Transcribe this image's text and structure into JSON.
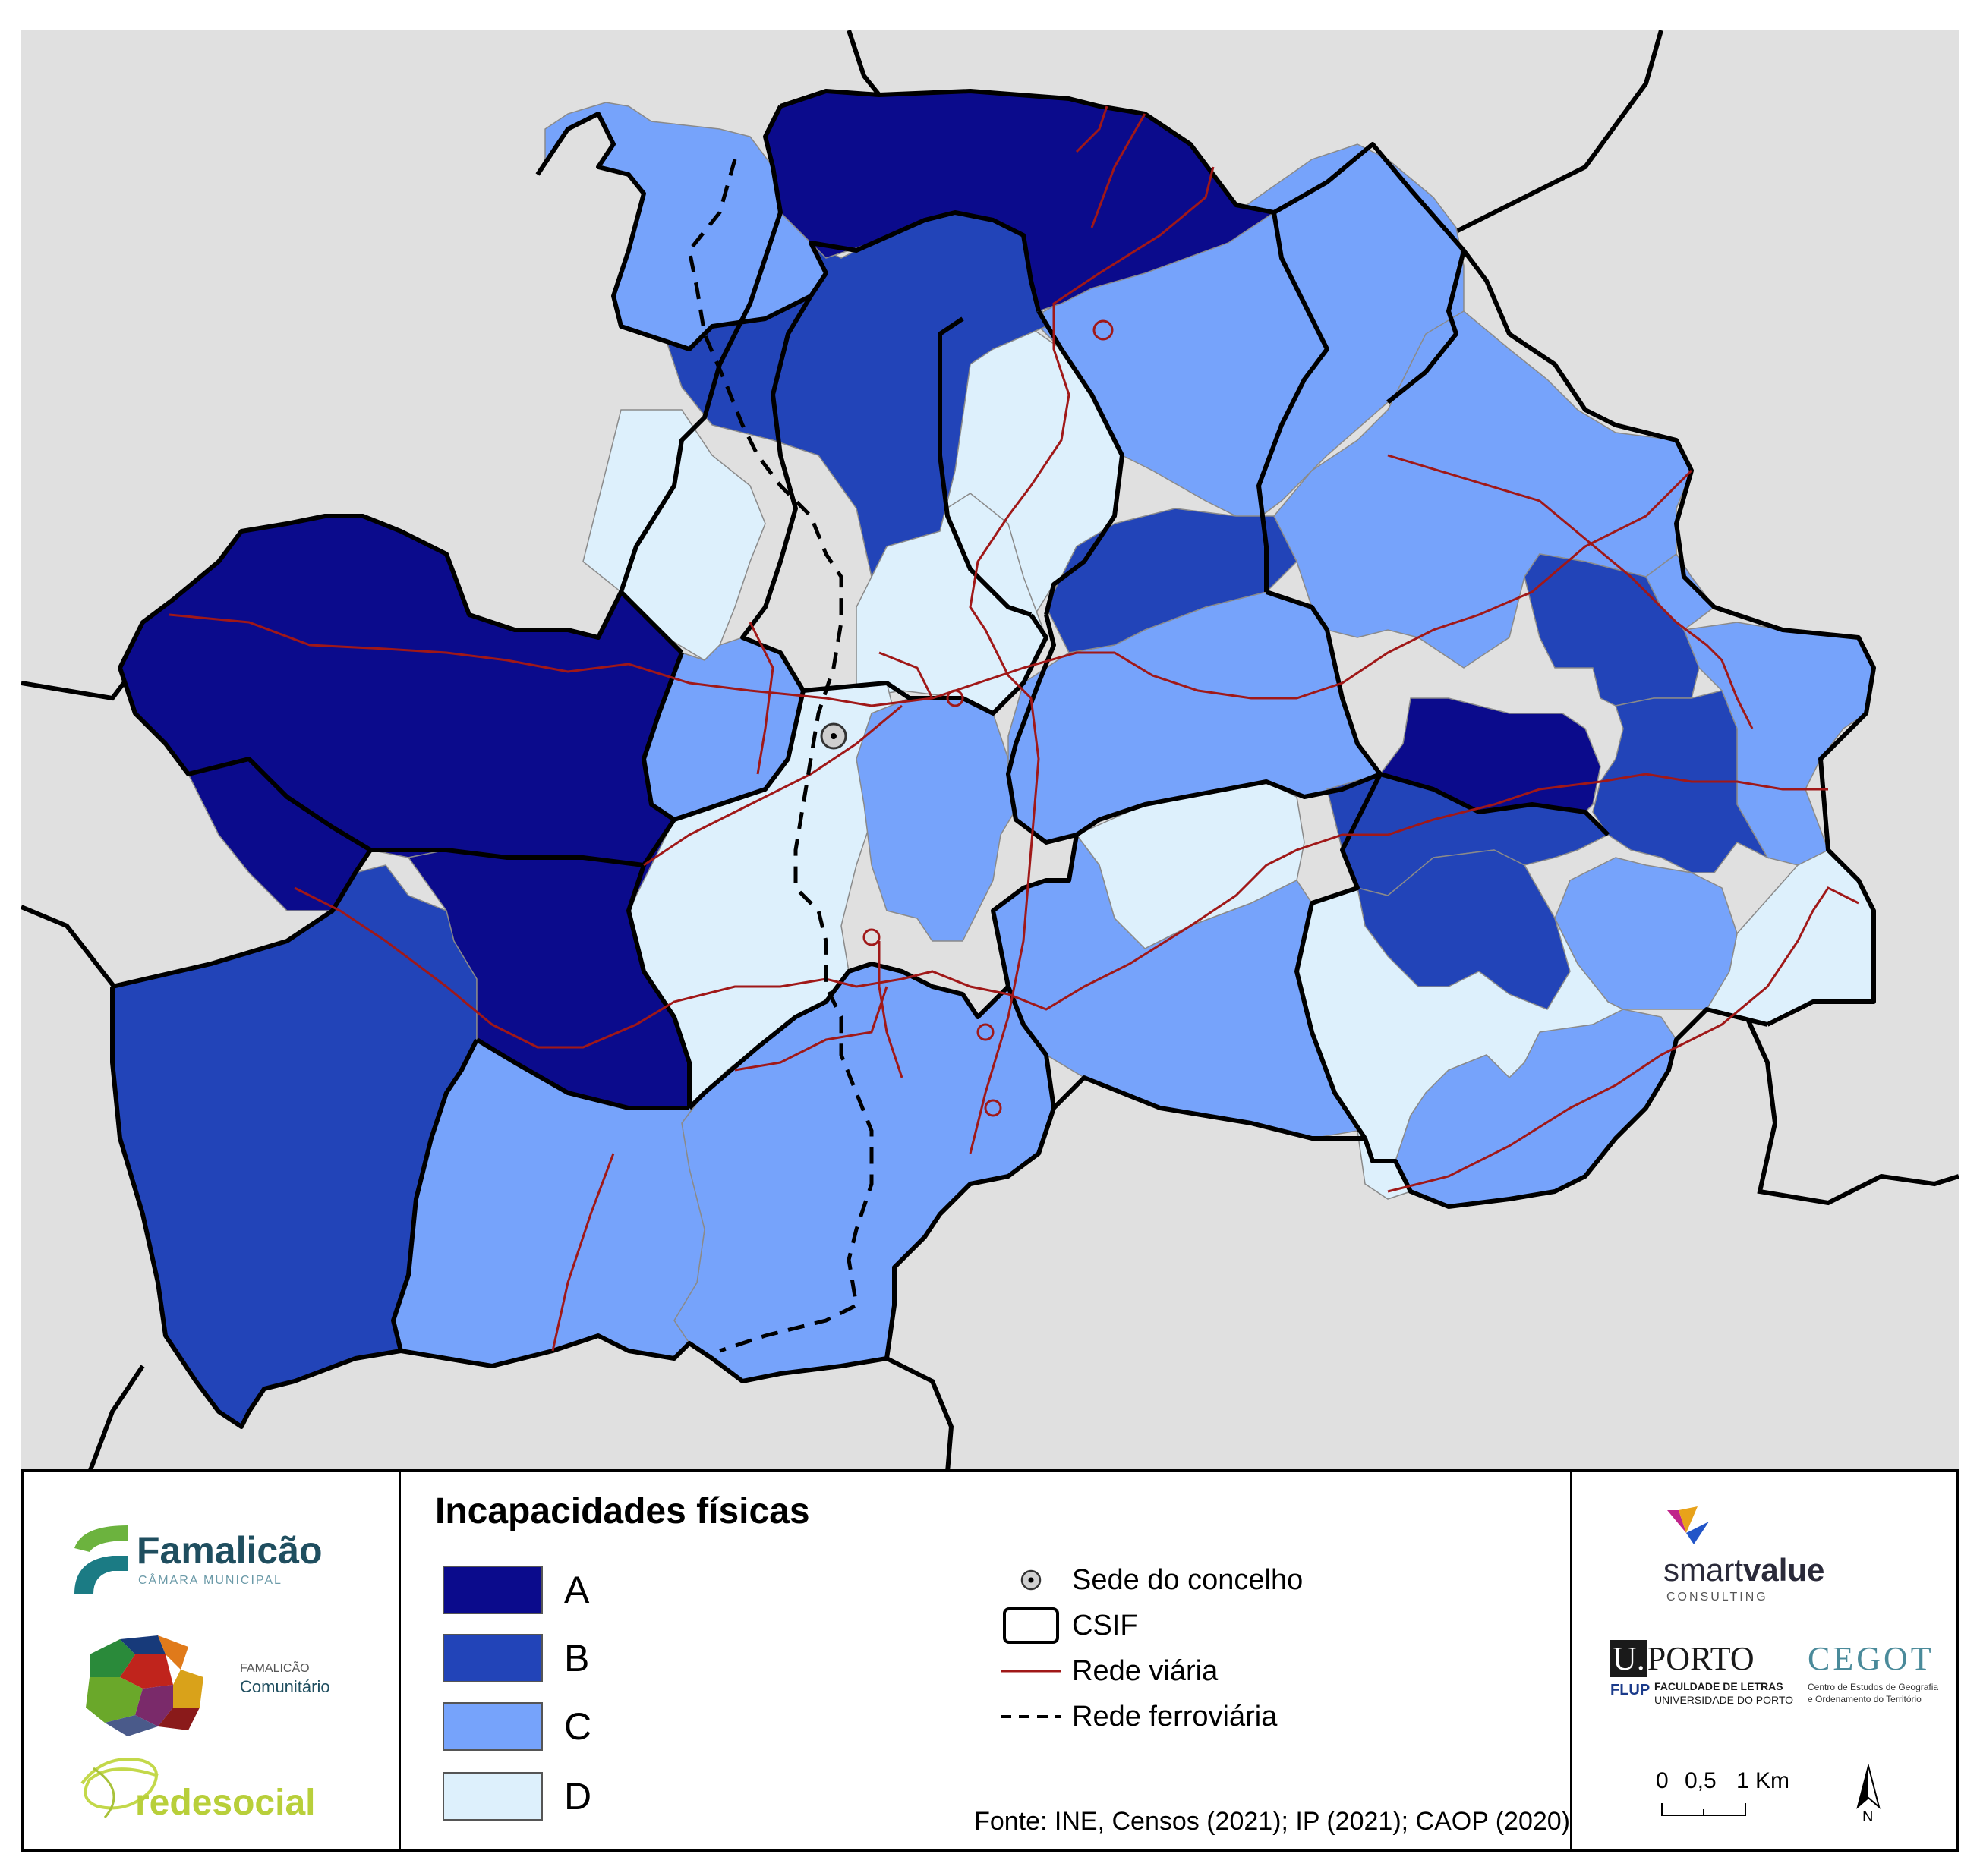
{
  "map": {
    "title": "Incapacidades físicas",
    "classes": [
      {
        "label": "A",
        "color": "#0b0b8c"
      },
      {
        "label": "B",
        "color": "#2244b8"
      },
      {
        "label": "C",
        "color": "#76a3fb"
      },
      {
        "label": "D",
        "color": "#ddf0fc"
      }
    ],
    "symbols": [
      {
        "label": "Sede do concelho",
        "icon": "seat-icon"
      },
      {
        "label": "CSIF",
        "icon": "boundary-box-icon"
      },
      {
        "label": "Rede viária",
        "icon": "road-line-icon"
      },
      {
        "label": "Rede ferroviária",
        "icon": "railway-dash-icon"
      }
    ],
    "source": "Fonte: INE, Censos (2021); IP (2021); CAOP (2020)",
    "scale": {
      "labels": [
        "0",
        "0,5",
        "1 Km"
      ]
    },
    "north": "N",
    "colors": {
      "background": "#e0e0e0",
      "road": "#a01818",
      "border": "#000000"
    }
  },
  "logos": {
    "famalicao": {
      "name": "Famalicão",
      "subtitle": "CÂMARA MUNICIPAL"
    },
    "comunitario": {
      "top": "FAMALICÃO",
      "name": "Comunitário"
    },
    "redesocial": {
      "name": "redesocial"
    },
    "smartvalue": {
      "part1": "smart",
      "part2": "value",
      "subtitle": "CONSULTING"
    },
    "uporto": {
      "u": "U.",
      "name": "PORTO",
      "flup": "FLUP",
      "line1": "FACULDADE DE LETRAS",
      "line2": "UNIVERSIDADE DO PORTO"
    },
    "cegot": {
      "name": "CEGOT",
      "line1": "Centro de Estudos de Geografia",
      "line2": "e Ordenamento do Território"
    }
  }
}
